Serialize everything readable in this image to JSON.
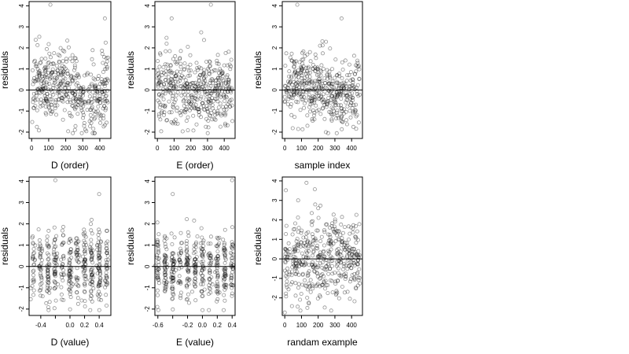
{
  "chart_data": [
    {
      "type": "scatter",
      "xlabel": "D (order)",
      "ylabel": "residuals",
      "xlim": [
        -15,
        465
      ],
      "ylim": [
        -2.3,
        4.2
      ],
      "xticks": [
        0,
        100,
        200,
        300,
        400
      ],
      "yticks": [
        -2,
        -1,
        0,
        1,
        2,
        3,
        4
      ],
      "hline": 0,
      "n_points": 450,
      "noted_points": [
        [
          110,
          4.05
        ],
        [
          430,
          3.4
        ],
        [
          110,
          -0.45
        ],
        [
          210,
          0.25
        ],
        [
          440,
          -1.55
        ]
      ]
    },
    {
      "type": "scatter",
      "xlabel": "E (order)",
      "ylabel": "residuals",
      "xlim": [
        -15,
        465
      ],
      "ylim": [
        -2.3,
        4.2
      ],
      "xticks": [
        0,
        100,
        200,
        300,
        400
      ],
      "yticks": [
        -2,
        -1,
        0,
        1,
        2,
        3,
        4
      ],
      "hline": 0,
      "n_points": 450,
      "noted_points": [
        [
          320,
          4.05
        ],
        [
          85,
          3.4
        ],
        [
          100,
          -1.5
        ],
        [
          55,
          2.2
        ]
      ]
    },
    {
      "type": "scatter",
      "xlabel": "sample index",
      "ylabel": "residuals",
      "xlim": [
        -15,
        465
      ],
      "ylim": [
        -2.3,
        4.2
      ],
      "xticks": [
        0,
        100,
        200,
        300,
        400
      ],
      "yticks": [
        -2,
        -1,
        0,
        1,
        2,
        3,
        4
      ],
      "hline": 0,
      "n_points": 450,
      "noted_points": [
        [
          75,
          4.05
        ],
        [
          340,
          3.4
        ],
        [
          345,
          -1.5
        ],
        [
          200,
          1.0
        ]
      ]
    },
    {
      "type": "scatter",
      "xlabel": "D (value)",
      "ylabel": "residuals",
      "xlim": [
        -0.56,
        0.56
      ],
      "ylim": [
        -2.3,
        4.2
      ],
      "xticks": [
        -0.4,
        -0.2,
        0.0,
        0.2,
        0.4
      ],
      "xtick_labels": [
        "-0.4",
        "",
        "0.0",
        "0.2",
        "0.4"
      ],
      "yticks": [
        -2,
        -1,
        0,
        1,
        2,
        3,
        4
      ],
      "hline": 0,
      "n_points": 450,
      "x_levels": [
        -0.5,
        -0.4,
        -0.3,
        -0.2,
        -0.1,
        0.0,
        0.1,
        0.2,
        0.3,
        0.4,
        0.5
      ],
      "noted_points": [
        [
          -0.2,
          4.05
        ],
        [
          0.4,
          3.4
        ],
        [
          -0.2,
          -0.45
        ],
        [
          0.4,
          -1.55
        ]
      ]
    },
    {
      "type": "scatter",
      "xlabel": "E (value)",
      "ylabel": "residuals",
      "xlim": [
        -0.64,
        0.44
      ],
      "ylim": [
        -2.3,
        4.2
      ],
      "xticks": [
        -0.6,
        -0.4,
        -0.2,
        0.0,
        0.2,
        0.4
      ],
      "xtick_labels": [
        "-0.6",
        "",
        "-0.2",
        "0.0",
        "0.2",
        "0.4"
      ],
      "yticks": [
        -2,
        -1,
        0,
        1,
        2,
        3,
        4
      ],
      "hline": 0,
      "n_points": 450,
      "x_levels": [
        -0.6,
        -0.5,
        -0.4,
        -0.3,
        -0.2,
        -0.1,
        0.0,
        0.1,
        0.2,
        0.3,
        0.4
      ],
      "noted_points": [
        [
          0.4,
          4.05
        ],
        [
          -0.4,
          3.4
        ],
        [
          -0.4,
          -1.5
        ],
        [
          0.2,
          -0.3
        ]
      ]
    },
    {
      "type": "scatter",
      "xlabel": "randam example",
      "ylabel": "residuals",
      "xlim": [
        -15,
        465
      ],
      "ylim": [
        -2.9,
        4.2
      ],
      "xticks": [
        0,
        100,
        200,
        300,
        400
      ],
      "yticks": [
        -2,
        -1,
        0,
        1,
        2,
        3,
        4
      ],
      "hline": 0,
      "n_points": 450,
      "noted_points": [
        [
          130,
          3.9
        ],
        [
          80,
          3.0
        ],
        [
          200,
          2.6
        ],
        [
          0,
          -2.75
        ],
        [
          330,
          0.0
        ]
      ]
    }
  ]
}
